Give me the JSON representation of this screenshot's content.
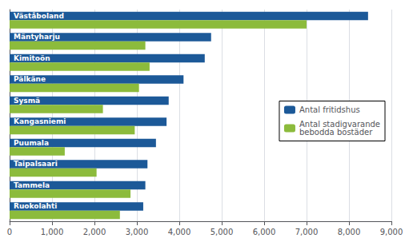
{
  "chart_data": {
    "type": "bar",
    "orientation": "horizontal",
    "categories": [
      "Väståboland",
      "Mäntyharju",
      "Kimitoön",
      "Pälkäne",
      "Sysmä",
      "Kangasniemi",
      "Puumala",
      "Taipalsaari",
      "Tammela",
      "Ruokolahti"
    ],
    "series": [
      {
        "name": "Antal fritidshus",
        "color": "#1C5998",
        "values": [
          8450,
          4750,
          4600,
          4100,
          3750,
          3700,
          3450,
          3250,
          3200,
          3150
        ]
      },
      {
        "name": "Antal stadigvarande\nbebodda bostäder",
        "color": "#8CBB3C",
        "values": [
          7000,
          3200,
          3300,
          3050,
          2200,
          2950,
          1300,
          2050,
          2850,
          2600
        ]
      }
    ],
    "xlim": [
      0,
      9000
    ],
    "xticks": [
      0,
      1000,
      2000,
      3000,
      4000,
      5000,
      6000,
      7000,
      8000,
      9000
    ],
    "grid": true,
    "legend": "right",
    "tick_labels": "x"
  }
}
